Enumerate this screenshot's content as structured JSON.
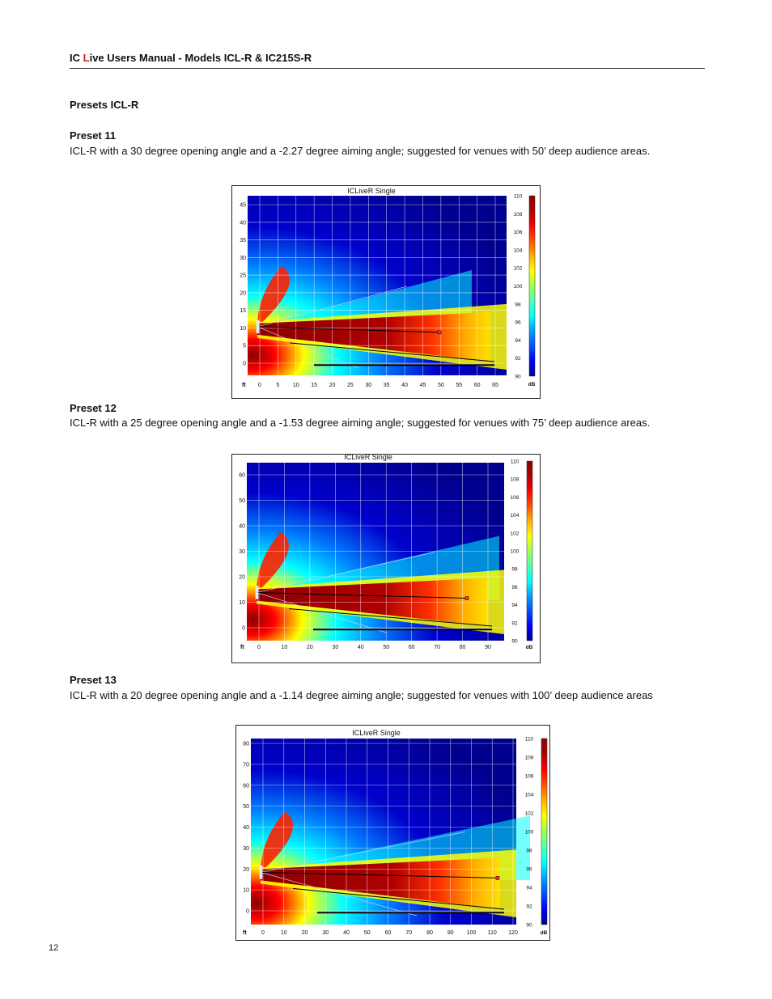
{
  "header": {
    "prefix_ic": "IC ",
    "red_letter": "L",
    "rest": "ive Users Manual - Models  ICL-R & IC215S-R"
  },
  "section_title": "Presets ICL-R",
  "presets": [
    {
      "heading": "Preset  11",
      "description": "ICL-R with a 30 degree opening angle and a -2.27 degree aiming angle; suggested for venues with 50’ deep audience areas.",
      "plot": {
        "title": "ICLiveR  Single",
        "x_unit": "ft",
        "x_ticks": [
          "0",
          "5",
          "10",
          "15",
          "20",
          "25",
          "30",
          "35",
          "40",
          "45",
          "50",
          "55",
          "60",
          "65"
        ],
        "y_ticks": [
          "0",
          "5",
          "10",
          "15",
          "20",
          "25",
          "30",
          "35",
          "40",
          "45"
        ],
        "colorbar_ticks": [
          "110",
          "108",
          "106",
          "104",
          "102",
          "100",
          "98",
          "96",
          "94",
          "92",
          "90"
        ],
        "colorbar_unit": "dB"
      }
    },
    {
      "heading": "Preset 12",
      "description": "ICL-R with a 25 degree opening angle and a -1.53 degree aiming angle; suggested for venues with 75’ deep audience areas.",
      "plot": {
        "title": "ICLiveR  Single",
        "x_unit": "ft",
        "x_ticks": [
          "0",
          "10",
          "20",
          "30",
          "40",
          "50",
          "60",
          "70",
          "80",
          "90"
        ],
        "y_ticks": [
          "0",
          "10",
          "20",
          "30",
          "40",
          "50",
          "60"
        ],
        "colorbar_ticks": [
          "110",
          "108",
          "106",
          "104",
          "102",
          "100",
          "98",
          "96",
          "94",
          "92",
          "90"
        ],
        "colorbar_unit": "dB"
      }
    },
    {
      "heading": "Preset 13",
      "description": "ICL-R with a 20 degree opening angle and a -1.14 degree aiming angle; suggested for venues with 100’ deep audience areas",
      "plot": {
        "title": "ICLiveR  Single",
        "x_unit": "ft",
        "x_ticks": [
          "0",
          "10",
          "20",
          "30",
          "40",
          "50",
          "60",
          "70",
          "80",
          "90",
          "100",
          "110",
          "120"
        ],
        "y_ticks": [
          "0",
          "10",
          "20",
          "30",
          "40",
          "50",
          "60",
          "70",
          "80"
        ],
        "colorbar_ticks": [
          "110",
          "108",
          "106",
          "104",
          "102",
          "100",
          "98",
          "96",
          "94",
          "92",
          "90"
        ],
        "colorbar_unit": "dB"
      }
    }
  ],
  "page_number": "12",
  "colors": {
    "header_accent": "#cc1f1f",
    "map_background": "#00008f",
    "map_hot": "#8b0000",
    "axis_text": "#111111"
  }
}
